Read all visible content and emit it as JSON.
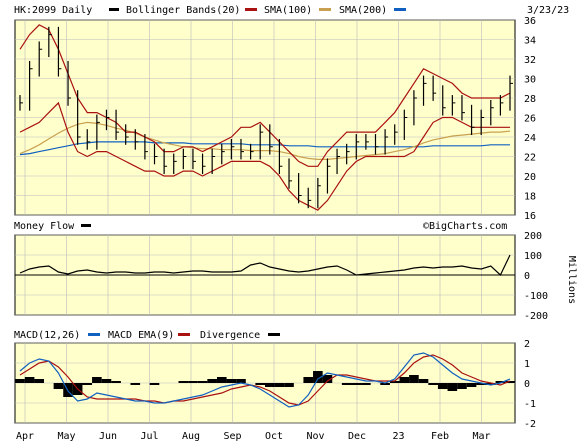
{
  "header": {
    "symbol_label": "HK:2099 Daily",
    "legend_items": [
      {
        "label": "Bollinger Bands(20)",
        "color": "#000000"
      },
      {
        "label": "SMA(100)",
        "color": "#aa1111"
      },
      {
        "label": "SMA(200)",
        "color": "#c8a050"
      },
      {
        "label": "",
        "color": "#1060c0"
      }
    ],
    "date": "3/23/23"
  },
  "watermark": "©BigCharts.com",
  "money_flow": {
    "label": "Money Flow",
    "legend_color": "#000000",
    "unit": "Millions"
  },
  "macd": {
    "legend_items": [
      {
        "label": "MACD(12,26)",
        "color": "#1060c0"
      },
      {
        "label": "MACD EMA(9)",
        "color": "#aa1111"
      },
      {
        "label": "Divergence",
        "color": "#000000"
      }
    ]
  },
  "chart_data": [
    {
      "type": "ohlc",
      "panel": "price",
      "ylim": [
        16,
        36
      ],
      "yticks": [
        16,
        18,
        20,
        22,
        24,
        26,
        28,
        30,
        32,
        34,
        36
      ],
      "x_labels": [
        "Apr",
        "May",
        "Jun",
        "Jul",
        "Aug",
        "Sep",
        "Oct",
        "Nov",
        "Dec",
        "23",
        "Feb",
        "Mar"
      ],
      "grid": true,
      "series": [
        {
          "name": "Price",
          "values": [
            27.5,
            31,
            33,
            34.5,
            31,
            28,
            24,
            23.5,
            25.5,
            26,
            24.5,
            24,
            23.5,
            22.5,
            22,
            21,
            21.5,
            22,
            21.5,
            21,
            22,
            22.5,
            23,
            22.5,
            22.5,
            24.5,
            23,
            21,
            19.5,
            18,
            17.5,
            19,
            21,
            22,
            22.5,
            23.5,
            23.5,
            23,
            24,
            24.5,
            26,
            28,
            29.5,
            28.5,
            27,
            27.5,
            26.5,
            25,
            26,
            27,
            27.5,
            29.5
          ]
        },
        {
          "name": "Bollinger Bands(20) upper",
          "values": [
            33,
            34.5,
            35.5,
            35,
            33,
            30.5,
            28,
            26.5,
            26.5,
            26,
            25.5,
            24.5,
            24.5,
            24,
            23.5,
            22.5,
            22.5,
            23,
            23,
            22.5,
            23,
            23.5,
            24,
            25,
            25,
            25.5,
            24.5,
            23.5,
            22.5,
            21.5,
            21,
            21,
            22.5,
            23.5,
            24.5,
            24.5,
            24.5,
            24.5,
            25.5,
            26.5,
            28,
            29.5,
            31,
            30.5,
            30,
            29.5,
            28.5,
            28,
            28,
            28,
            28,
            28.5
          ]
        },
        {
          "name": "Bollinger Bands(20) lower",
          "values": [
            24.5,
            25,
            25.5,
            26.5,
            27.5,
            24.5,
            22.5,
            22,
            22.5,
            22.5,
            22,
            21.5,
            21,
            20.5,
            20.5,
            20,
            20,
            20.5,
            20.5,
            20,
            20.5,
            21,
            21.5,
            21.5,
            21.5,
            21.5,
            21,
            20,
            18.5,
            17.5,
            17,
            16.5,
            17.5,
            19,
            20.5,
            21.5,
            22,
            22,
            22,
            22,
            22,
            22.5,
            24,
            25.5,
            26,
            26,
            25.5,
            25,
            25,
            25,
            25,
            25
          ]
        },
        {
          "name": "SMA(100)",
          "values": [
            22.3,
            22.7,
            23.2,
            23.8,
            24.4,
            24.9,
            25.3,
            25.5,
            25.4,
            25.2,
            24.9,
            24.7,
            24.4,
            24,
            23.7,
            23.4,
            23.2,
            23,
            22.9,
            22.8,
            22.8,
            22.7,
            22.7,
            22.7,
            22.6,
            22.6,
            22.6,
            22.5,
            22.3,
            22,
            21.8,
            21.7,
            21.7,
            21.8,
            21.9,
            22,
            22.1,
            22.2,
            22.3,
            22.5,
            22.7,
            23,
            23.4,
            23.7,
            23.9,
            24.1,
            24.2,
            24.3,
            24.4,
            24.5,
            24.5,
            24.6
          ]
        },
        {
          "name": "SMA(200)",
          "values": [
            22.2,
            22.3,
            22.5,
            22.7,
            22.9,
            23.1,
            23.3,
            23.4,
            23.5,
            23.5,
            23.5,
            23.5,
            23.5,
            23.5,
            23.4,
            23.4,
            23.4,
            23.4,
            23.3,
            23.3,
            23.3,
            23.3,
            23.3,
            23.3,
            23.2,
            23.2,
            23.2,
            23.2,
            23.1,
            23.1,
            23.1,
            23,
            23,
            23,
            23,
            23,
            23,
            23,
            23,
            23,
            23,
            23,
            23,
            23.1,
            23.1,
            23.1,
            23.1,
            23.1,
            23.1,
            23.2,
            23.2,
            23.2
          ]
        }
      ]
    },
    {
      "type": "line",
      "panel": "money_flow",
      "ylabel": "Millions",
      "ylim": [
        -200,
        200
      ],
      "yticks": [
        -200,
        -100,
        0,
        100,
        200
      ],
      "grid": true,
      "series": [
        {
          "name": "Money Flow",
          "values": [
            10,
            30,
            40,
            45,
            15,
            5,
            20,
            25,
            15,
            10,
            15,
            15,
            10,
            10,
            15,
            15,
            10,
            15,
            20,
            20,
            15,
            15,
            15,
            20,
            50,
            60,
            40,
            30,
            20,
            15,
            20,
            30,
            40,
            45,
            25,
            0,
            5,
            10,
            15,
            20,
            25,
            35,
            40,
            35,
            40,
            40,
            45,
            35,
            30,
            45,
            0,
            100
          ]
        }
      ]
    },
    {
      "type": "line",
      "panel": "macd",
      "ylim": [
        -2,
        2
      ],
      "yticks": [
        -2,
        -1,
        0,
        1,
        2
      ],
      "grid": true,
      "series": [
        {
          "name": "MACD(12,26)",
          "values": [
            0.6,
            1,
            1.2,
            1.1,
            0.5,
            -0.4,
            -0.9,
            -0.8,
            -0.5,
            -0.6,
            -0.7,
            -0.8,
            -0.9,
            -0.9,
            -1,
            -1,
            -0.9,
            -0.8,
            -0.7,
            -0.6,
            -0.4,
            -0.2,
            -0.1,
            0,
            -0.1,
            -0.3,
            -0.6,
            -0.9,
            -1.2,
            -1.1,
            -0.6,
            0.2,
            0.5,
            0.4,
            0.3,
            0.2,
            0.1,
            0.1,
            0,
            0.2,
            0.8,
            1.4,
            1.5,
            1.3,
            0.9,
            0.5,
            0.2,
            0.1,
            0,
            -0.1,
            0,
            0.2
          ]
        },
        {
          "name": "MACD EMA(9)",
          "values": [
            0.4,
            0.7,
            1,
            1.1,
            0.8,
            0.3,
            -0.3,
            -0.7,
            -0.8,
            -0.8,
            -0.8,
            -0.8,
            -0.8,
            -0.9,
            -0.9,
            -1,
            -0.9,
            -0.9,
            -0.8,
            -0.7,
            -0.6,
            -0.5,
            -0.3,
            -0.2,
            -0.1,
            -0.2,
            -0.4,
            -0.7,
            -1,
            -1.1,
            -0.9,
            -0.4,
            0.1,
            0.4,
            0.4,
            0.3,
            0.2,
            0.1,
            0.1,
            0.1,
            0.5,
            1,
            1.3,
            1.4,
            1.2,
            0.9,
            0.5,
            0.3,
            0.1,
            0,
            -0.1,
            0.1
          ]
        },
        {
          "name": "Divergence",
          "values": [
            0.2,
            0.3,
            0.2,
            0,
            -0.3,
            -0.7,
            -0.6,
            -0.1,
            0.3,
            0.2,
            0.1,
            0,
            -0.1,
            0,
            -0.1,
            0,
            0,
            0.1,
            0.1,
            0.1,
            0.2,
            0.3,
            0.2,
            0.2,
            0,
            -0.1,
            -0.2,
            -0.2,
            -0.2,
            0,
            0.3,
            0.6,
            0.4,
            0,
            -0.1,
            -0.1,
            -0.1,
            0,
            -0.1,
            0.1,
            0.3,
            0.4,
            0.2,
            -0.1,
            -0.3,
            -0.4,
            -0.3,
            -0.2,
            -0.1,
            -0.1,
            0.1,
            0.1
          ]
        }
      ]
    }
  ]
}
